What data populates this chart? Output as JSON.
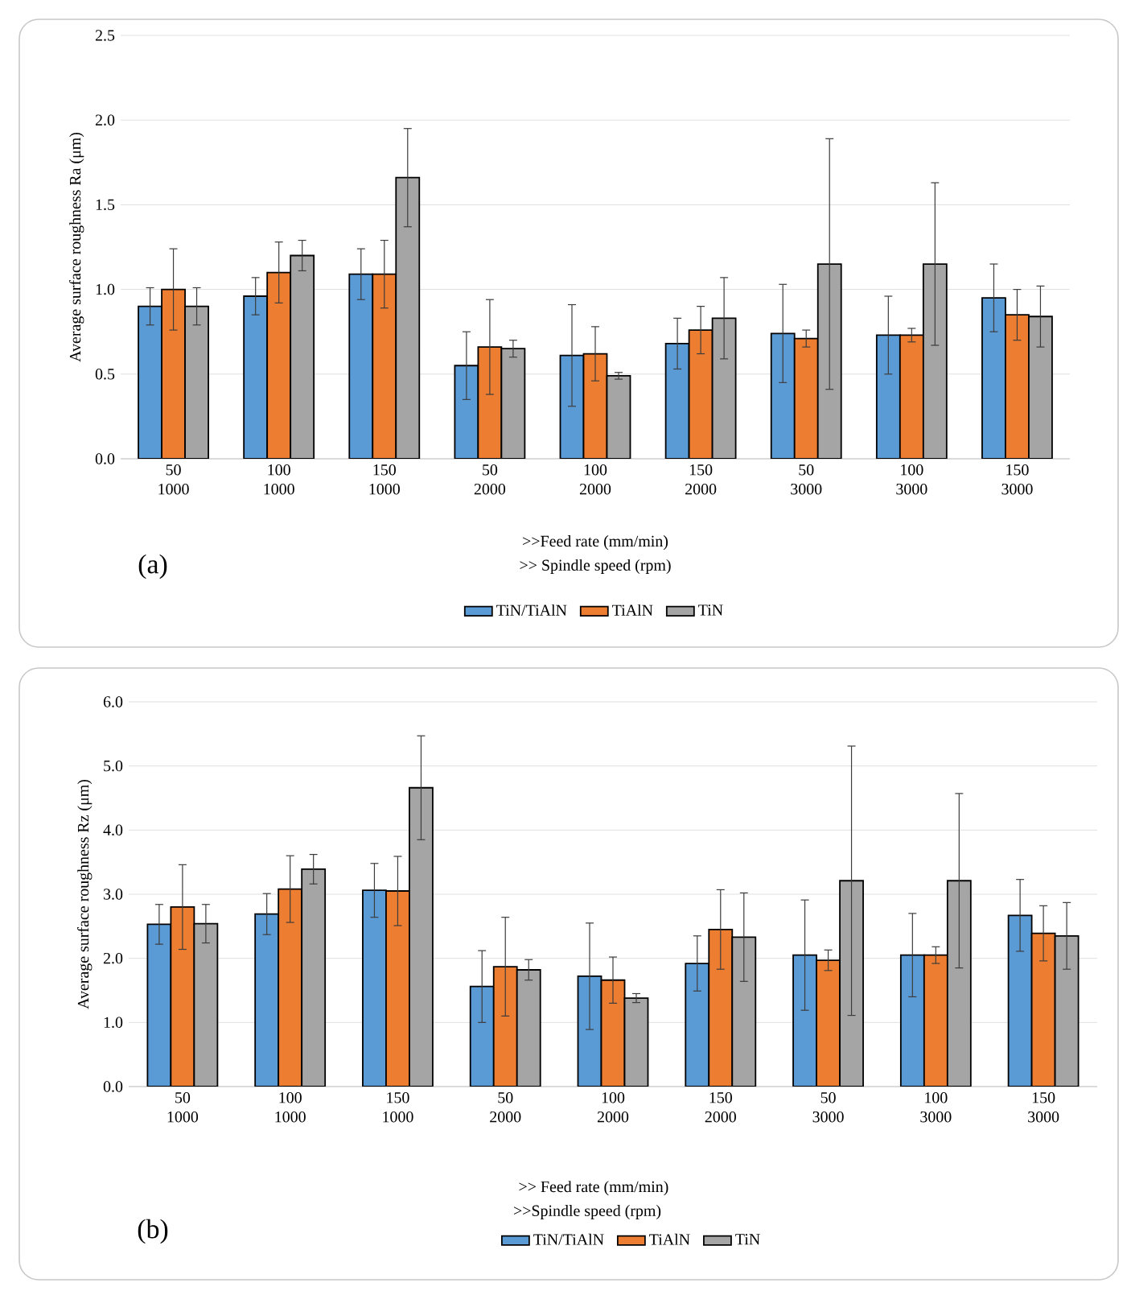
{
  "chart_data": [
    {
      "type": "bar",
      "ylabel": "Average surface roughness Ra (μm)",
      "xlabel": ">>Feed rate (mm/min)",
      "annotations": [
        ">> Spindle speed (rpm)",
        "(a)"
      ],
      "categories": [
        "50 1000",
        "100 1000",
        "150 1000",
        "50 2000",
        "100 2000",
        "150 2000",
        "50 3000",
        "100 3000",
        "150 3000"
      ],
      "series": [
        {
          "name": "TiN/TiAlN",
          "color": "#5b9bd5",
          "values": [
            0.9,
            0.96,
            1.09,
            0.55,
            0.61,
            0.68,
            0.74,
            0.73,
            0.95
          ],
          "errors": [
            0.11,
            0.11,
            0.15,
            0.2,
            0.3,
            0.15,
            0.29,
            0.23,
            0.2
          ]
        },
        {
          "name": "TiAlN",
          "color": "#ed7d31",
          "values": [
            1.0,
            1.1,
            1.09,
            0.66,
            0.62,
            0.76,
            0.71,
            0.73,
            0.85
          ],
          "errors": [
            0.24,
            0.18,
            0.2,
            0.28,
            0.16,
            0.14,
            0.05,
            0.04,
            0.15
          ]
        },
        {
          "name": "TiN",
          "color": "#a5a5a5",
          "values": [
            0.9,
            1.2,
            1.66,
            0.65,
            0.49,
            0.83,
            1.15,
            1.15,
            0.84
          ],
          "errors": [
            0.11,
            0.09,
            0.29,
            0.05,
            0.02,
            0.24,
            0.74,
            0.48,
            0.18
          ]
        }
      ],
      "ylim": [
        0,
        2.5
      ],
      "yticks": [
        {
          "value": 0,
          "label": "0.0"
        },
        {
          "value": 0.5,
          "label": "0.5"
        },
        {
          "value": 1,
          "label": "1.0"
        },
        {
          "value": 1.5,
          "label": "1.5"
        },
        {
          "value": 2,
          "label": "2.0"
        },
        {
          "value": 2.5,
          "label": "2.5"
        }
      ],
      "grid": "y",
      "legend": "bottom"
    },
    {
      "type": "bar",
      "ylabel": "Average surface roughness Rz (μm)",
      "xlabel": ">> Feed rate (mm/min)",
      "annotations": [
        ">>Spindle speed (rpm)",
        "(b)"
      ],
      "categories": [
        "50 1000",
        "100 1000",
        "150 1000",
        "50 2000",
        "100 2000",
        "150 2000",
        "50 3000",
        "100 3000",
        "150 3000"
      ],
      "series": [
        {
          "name": "TiN/TiAlN",
          "color": "#5b9bd5",
          "values": [
            2.53,
            2.69,
            3.06,
            1.56,
            1.72,
            1.92,
            2.05,
            2.05,
            2.67
          ],
          "errors": [
            0.31,
            0.32,
            0.42,
            0.56,
            0.83,
            0.43,
            0.86,
            0.65,
            0.56
          ]
        },
        {
          "name": "TiAlN",
          "color": "#ed7d31",
          "values": [
            2.8,
            3.08,
            3.05,
            1.87,
            1.66,
            2.45,
            1.97,
            2.05,
            2.39
          ],
          "errors": [
            0.66,
            0.52,
            0.54,
            0.77,
            0.36,
            0.62,
            0.16,
            0.13,
            0.43
          ]
        },
        {
          "name": "TiN",
          "color": "#a5a5a5",
          "values": [
            2.54,
            3.39,
            4.66,
            1.82,
            1.38,
            2.33,
            3.21,
            3.21,
            2.35
          ],
          "errors": [
            0.3,
            0.23,
            0.81,
            0.16,
            0.07,
            0.69,
            2.1,
            1.36,
            0.52
          ]
        }
      ],
      "ylim": [
        0,
        6
      ],
      "yticks": [
        {
          "value": 0,
          "label": "0.0"
        },
        {
          "value": 1,
          "label": "1.0"
        },
        {
          "value": 2,
          "label": "2.0"
        },
        {
          "value": 3,
          "label": "3.0"
        },
        {
          "value": 4,
          "label": "4.0"
        },
        {
          "value": 5,
          "label": "5.0"
        },
        {
          "value": 6,
          "label": "6.0"
        }
      ],
      "grid": "y",
      "legend": "bottom"
    }
  ]
}
